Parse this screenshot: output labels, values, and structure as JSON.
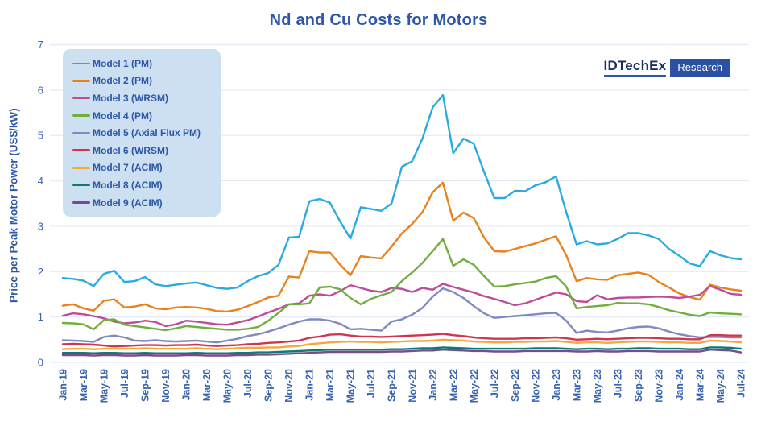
{
  "title": "Nd and Cu Costs for Motors",
  "logo": {
    "brand": "IDTechEx",
    "sub": "Research"
  },
  "y_axis": {
    "label": "Price per Peak Motor Power (US$/kW)",
    "ticks": [
      0,
      1,
      2,
      3,
      4,
      5,
      6,
      7
    ]
  },
  "colors": {
    "text_blue": "#2E57A8",
    "tick_blue": "#3763B0",
    "grid": "#E4EBF6",
    "legend_bg": "#CDE0F2"
  },
  "chart_data": {
    "type": "line",
    "title": "Nd and Cu Costs for Motors",
    "xlabel": "",
    "ylabel": "Price per Peak Motor Power (US$/kW)",
    "ylim": [
      0,
      7
    ],
    "grid": true,
    "legend_position": "top-left",
    "x_tick_every": 2,
    "months": [
      "Jan-19",
      "Feb-19",
      "Mar-19",
      "Apr-19",
      "May-19",
      "Jun-19",
      "Jul-19",
      "Aug-19",
      "Sep-19",
      "Oct-19",
      "Nov-19",
      "Dec-19",
      "Jan-20",
      "Feb-20",
      "Mar-20",
      "Apr-20",
      "May-20",
      "Jun-20",
      "Jul-20",
      "Aug-20",
      "Sep-20",
      "Oct-20",
      "Nov-20",
      "Dec-20",
      "Jan-21",
      "Feb-21",
      "Mar-21",
      "Apr-21",
      "May-21",
      "Jun-21",
      "Jul-21",
      "Aug-21",
      "Sep-21",
      "Oct-21",
      "Nov-21",
      "Dec-21",
      "Jan-22",
      "Feb-22",
      "Mar-22",
      "Apr-22",
      "May-22",
      "Jun-22",
      "Jul-22",
      "Aug-22",
      "Sep-22",
      "Oct-22",
      "Nov-22",
      "Dec-22",
      "Jan-23",
      "Feb-23",
      "Mar-23",
      "Apr-23",
      "May-23",
      "Jun-23",
      "Jul-23",
      "Aug-23",
      "Sep-23",
      "Oct-23",
      "Nov-23",
      "Dec-23",
      "Jan-24",
      "Feb-24",
      "Mar-24",
      "Apr-24",
      "May-24",
      "Jun-24",
      "Jul-24"
    ],
    "series": [
      {
        "name": "Model 1 (PM)",
        "color": "#29ABE2",
        "values": [
          1.86,
          1.84,
          1.8,
          1.68,
          1.95,
          2.02,
          1.77,
          1.79,
          1.88,
          1.72,
          1.68,
          1.71,
          1.74,
          1.76,
          1.7,
          1.64,
          1.62,
          1.65,
          1.79,
          1.9,
          1.97,
          2.15,
          2.75,
          2.77,
          3.55,
          3.6,
          3.52,
          3.1,
          2.73,
          3.42,
          3.38,
          3.34,
          3.5,
          4.31,
          4.43,
          4.93,
          5.62,
          5.89,
          4.61,
          4.93,
          4.82,
          4.2,
          3.62,
          3.62,
          3.78,
          3.77,
          3.9,
          3.97,
          4.1,
          3.31,
          2.6,
          2.67,
          2.6,
          2.62,
          2.72,
          2.85,
          2.85,
          2.8,
          2.72,
          2.5,
          2.35,
          2.18,
          2.12,
          2.45,
          2.36,
          2.3,
          2.27
        ]
      },
      {
        "name": "Model 2 (PM)",
        "color": "#E8821C",
        "values": [
          1.25,
          1.28,
          1.19,
          1.14,
          1.36,
          1.39,
          1.21,
          1.23,
          1.28,
          1.19,
          1.17,
          1.21,
          1.22,
          1.21,
          1.18,
          1.13,
          1.12,
          1.16,
          1.24,
          1.33,
          1.43,
          1.47,
          1.89,
          1.87,
          2.45,
          2.42,
          2.42,
          2.15,
          1.92,
          2.34,
          2.31,
          2.29,
          2.55,
          2.84,
          3.05,
          3.31,
          3.75,
          3.96,
          3.12,
          3.3,
          3.18,
          2.75,
          2.45,
          2.44,
          2.5,
          2.56,
          2.62,
          2.7,
          2.78,
          2.36,
          1.79,
          1.86,
          1.83,
          1.82,
          1.92,
          1.95,
          1.98,
          1.93,
          1.77,
          1.65,
          1.52,
          1.44,
          1.38,
          1.71,
          1.65,
          1.61,
          1.58
        ]
      },
      {
        "name": "Model 3 (WRSM)",
        "color": "#BE4C97",
        "values": [
          1.03,
          1.08,
          1.06,
          1.02,
          0.97,
          0.9,
          0.86,
          0.88,
          0.92,
          0.89,
          0.8,
          0.84,
          0.92,
          0.9,
          0.87,
          0.84,
          0.83,
          0.88,
          0.93,
          1.01,
          1.1,
          1.18,
          1.28,
          1.3,
          1.47,
          1.5,
          1.47,
          1.57,
          1.7,
          1.64,
          1.58,
          1.55,
          1.64,
          1.62,
          1.55,
          1.64,
          1.6,
          1.73,
          1.66,
          1.6,
          1.54,
          1.46,
          1.4,
          1.33,
          1.26,
          1.3,
          1.38,
          1.46,
          1.54,
          1.5,
          1.35,
          1.33,
          1.48,
          1.39,
          1.42,
          1.43,
          1.43,
          1.44,
          1.45,
          1.44,
          1.42,
          1.45,
          1.49,
          1.68,
          1.6,
          1.51,
          1.49
        ]
      },
      {
        "name": "Model 4 (PM)",
        "color": "#71AE40",
        "values": [
          0.87,
          0.86,
          0.84,
          0.73,
          0.93,
          0.95,
          0.83,
          0.8,
          0.77,
          0.74,
          0.71,
          0.75,
          0.8,
          0.78,
          0.76,
          0.74,
          0.72,
          0.72,
          0.74,
          0.78,
          0.92,
          1.09,
          1.28,
          1.28,
          1.3,
          1.65,
          1.67,
          1.61,
          1.42,
          1.28,
          1.4,
          1.48,
          1.55,
          1.79,
          1.98,
          2.19,
          2.45,
          2.72,
          2.13,
          2.27,
          2.15,
          1.9,
          1.67,
          1.68,
          1.72,
          1.75,
          1.78,
          1.86,
          1.9,
          1.67,
          1.19,
          1.22,
          1.24,
          1.26,
          1.31,
          1.3,
          1.3,
          1.28,
          1.22,
          1.15,
          1.1,
          1.05,
          1.02,
          1.1,
          1.08,
          1.07,
          1.06
        ]
      },
      {
        "name": "Model 5 (Axial Flux PM)",
        "color": "#8089C1",
        "values": [
          0.49,
          0.48,
          0.47,
          0.45,
          0.56,
          0.59,
          0.55,
          0.48,
          0.47,
          0.49,
          0.47,
          0.46,
          0.47,
          0.48,
          0.46,
          0.44,
          0.48,
          0.52,
          0.58,
          0.62,
          0.68,
          0.75,
          0.83,
          0.9,
          0.95,
          0.95,
          0.92,
          0.85,
          0.73,
          0.74,
          0.72,
          0.7,
          0.9,
          0.95,
          1.05,
          1.2,
          1.45,
          1.63,
          1.55,
          1.42,
          1.24,
          1.08,
          0.98,
          1.0,
          1.02,
          1.04,
          1.06,
          1.08,
          1.09,
          0.92,
          0.65,
          0.7,
          0.67,
          0.66,
          0.7,
          0.75,
          0.78,
          0.79,
          0.75,
          0.68,
          0.62,
          0.58,
          0.55,
          0.56,
          0.56,
          0.55,
          0.55
        ]
      },
      {
        "name": "Model 6 (WRSM)",
        "color": "#D2344F",
        "values": [
          0.4,
          0.41,
          0.4,
          0.39,
          0.37,
          0.35,
          0.36,
          0.37,
          0.38,
          0.38,
          0.37,
          0.38,
          0.38,
          0.39,
          0.37,
          0.36,
          0.37,
          0.38,
          0.4,
          0.41,
          0.43,
          0.44,
          0.46,
          0.48,
          0.54,
          0.57,
          0.61,
          0.62,
          0.59,
          0.57,
          0.57,
          0.56,
          0.57,
          0.58,
          0.59,
          0.6,
          0.61,
          0.63,
          0.6,
          0.58,
          0.55,
          0.53,
          0.52,
          0.52,
          0.52,
          0.53,
          0.53,
          0.54,
          0.55,
          0.53,
          0.5,
          0.51,
          0.52,
          0.51,
          0.52,
          0.53,
          0.54,
          0.54,
          0.53,
          0.52,
          0.52,
          0.51,
          0.51,
          0.6,
          0.6,
          0.59,
          0.59
        ]
      },
      {
        "name": "Model 7 (ACIM)",
        "color": "#F6A83B",
        "values": [
          0.29,
          0.3,
          0.3,
          0.29,
          0.3,
          0.3,
          0.3,
          0.3,
          0.31,
          0.3,
          0.3,
          0.3,
          0.3,
          0.31,
          0.3,
          0.29,
          0.3,
          0.31,
          0.32,
          0.32,
          0.33,
          0.33,
          0.35,
          0.36,
          0.4,
          0.42,
          0.44,
          0.45,
          0.46,
          0.45,
          0.45,
          0.44,
          0.45,
          0.46,
          0.47,
          0.47,
          0.48,
          0.5,
          0.49,
          0.48,
          0.46,
          0.45,
          0.44,
          0.44,
          0.45,
          0.45,
          0.46,
          0.46,
          0.47,
          0.45,
          0.43,
          0.44,
          0.44,
          0.43,
          0.44,
          0.45,
          0.46,
          0.46,
          0.45,
          0.44,
          0.44,
          0.43,
          0.43,
          0.48,
          0.47,
          0.46,
          0.44
        ]
      },
      {
        "name": "Model 8 (ACIM)",
        "color": "#0D7B72",
        "values": [
          0.21,
          0.21,
          0.21,
          0.2,
          0.21,
          0.21,
          0.2,
          0.2,
          0.21,
          0.2,
          0.2,
          0.2,
          0.2,
          0.21,
          0.2,
          0.2,
          0.2,
          0.21,
          0.21,
          0.22,
          0.22,
          0.23,
          0.24,
          0.25,
          0.26,
          0.27,
          0.28,
          0.28,
          0.28,
          0.28,
          0.28,
          0.28,
          0.29,
          0.29,
          0.3,
          0.31,
          0.31,
          0.33,
          0.32,
          0.31,
          0.3,
          0.3,
          0.3,
          0.3,
          0.3,
          0.3,
          0.31,
          0.31,
          0.31,
          0.3,
          0.29,
          0.3,
          0.3,
          0.29,
          0.3,
          0.3,
          0.31,
          0.31,
          0.3,
          0.3,
          0.3,
          0.29,
          0.29,
          0.33,
          0.33,
          0.32,
          0.3
        ]
      },
      {
        "name": "Model 9 (ACIM)",
        "color": "#7A4991",
        "values": [
          0.16,
          0.16,
          0.16,
          0.15,
          0.16,
          0.16,
          0.15,
          0.15,
          0.16,
          0.15,
          0.15,
          0.15,
          0.16,
          0.16,
          0.15,
          0.15,
          0.15,
          0.16,
          0.16,
          0.17,
          0.17,
          0.18,
          0.19,
          0.2,
          0.21,
          0.22,
          0.23,
          0.23,
          0.23,
          0.23,
          0.23,
          0.23,
          0.24,
          0.24,
          0.25,
          0.26,
          0.26,
          0.28,
          0.27,
          0.26,
          0.25,
          0.25,
          0.24,
          0.24,
          0.24,
          0.25,
          0.25,
          0.25,
          0.25,
          0.25,
          0.24,
          0.24,
          0.25,
          0.24,
          0.24,
          0.25,
          0.25,
          0.25,
          0.24,
          0.24,
          0.24,
          0.24,
          0.24,
          0.28,
          0.27,
          0.26,
          0.22
        ]
      }
    ]
  }
}
